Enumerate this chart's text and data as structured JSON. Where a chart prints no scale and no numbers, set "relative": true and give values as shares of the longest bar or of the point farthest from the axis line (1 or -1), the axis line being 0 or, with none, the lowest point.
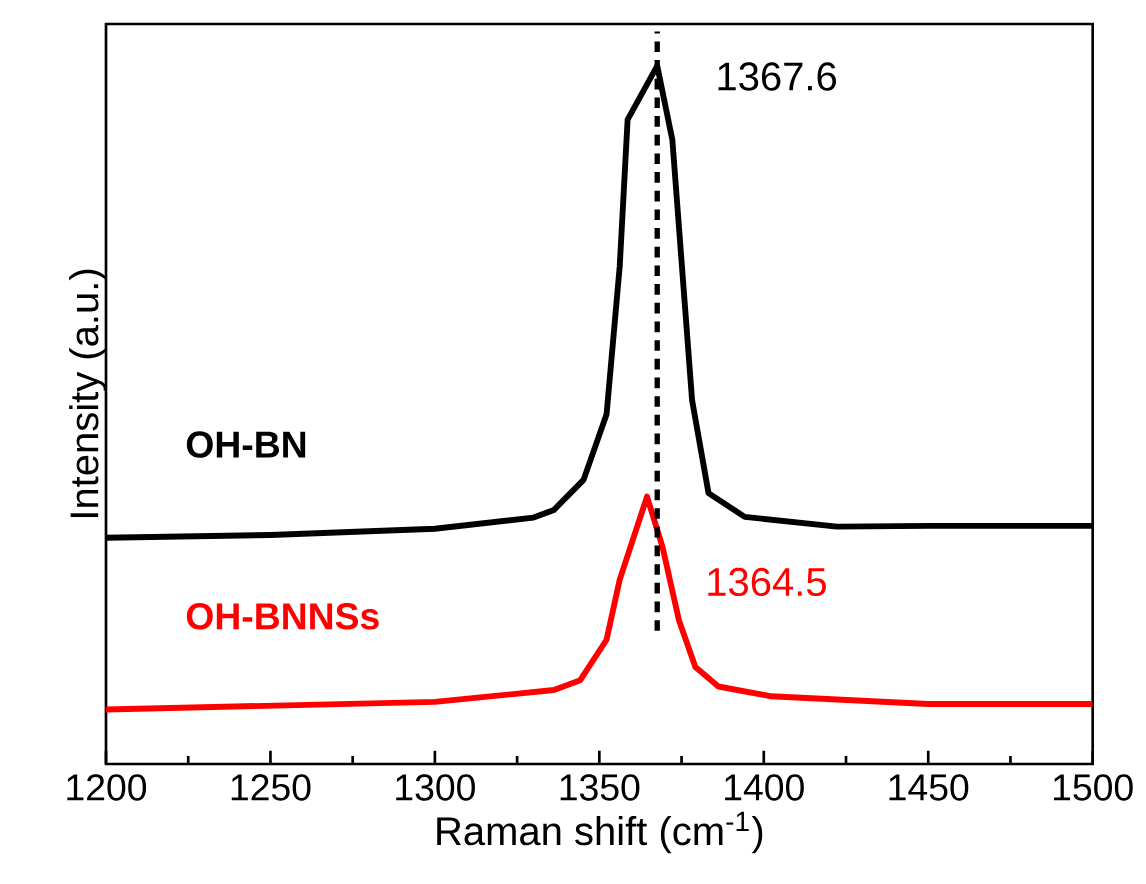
{
  "chart_data": {
    "type": "line",
    "relative": true,
    "xlabel": "Raman shift (cm$^{-1}$)",
    "ylabel": "Intensity (a.u.)",
    "xlim": [
      1200,
      1500
    ],
    "xticks": [
      1200,
      1250,
      1300,
      1350,
      1400,
      1450,
      1500
    ],
    "series": [
      {
        "name": "OH-BN",
        "color": "#000000",
        "x": [
          1200,
          1250,
          1300,
          1330,
          1336.2,
          1345.2,
          1352.2,
          1356.2,
          1358.6,
          1367.6,
          1372.2,
          1378.2,
          1383.2,
          1394.2,
          1422.2,
          1450,
          1500
        ],
        "values": [
          0.324,
          0.328,
          0.337,
          0.353,
          0.364,
          0.407,
          0.501,
          0.713,
          0.923,
          1.0,
          0.894,
          0.521,
          0.388,
          0.354,
          0.34,
          0.341,
          0.341
        ]
      },
      {
        "name": "OH-BNNSs",
        "color": "#ff0000",
        "x": [
          1200,
          1300,
          1336.2,
          1344.2,
          1352.2,
          1356.2,
          1364.5,
          1369.2,
          1374.2,
          1379.2,
          1386.2,
          1402.2,
          1450,
          1500
        ],
        "values": [
          0.078,
          0.089,
          0.106,
          0.12,
          0.178,
          0.264,
          0.383,
          0.311,
          0.206,
          0.139,
          0.111,
          0.097,
          0.086,
          0.086
        ]
      }
    ],
    "ref_lines": [
      {
        "axis": "x",
        "value": 1367.6,
        "color": "#000000",
        "line_style": "dashed"
      }
    ],
    "annotations": [
      {
        "text": "1367.6",
        "x": 1367.6,
        "y": 1.0
      },
      {
        "text": "1364.5",
        "x": 1364.5,
        "y": 0.383
      }
    ],
    "line_style": "solid",
    "marker": "none",
    "legend": false,
    "grid": false
  }
}
